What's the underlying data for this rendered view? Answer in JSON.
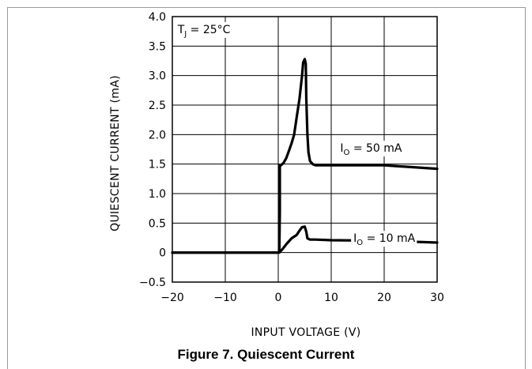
{
  "caption": "Figure 7. Quiescent Current",
  "chart_data": {
    "type": "line",
    "title": "",
    "xlabel": "INPUT VOLTAGE (V)",
    "ylabel": "QUIESCENT CURRENT (mA)",
    "xlim": [
      -20,
      30
    ],
    "ylim": [
      -0.5,
      4.0
    ],
    "xticks": [
      "−20",
      "−10",
      "0",
      "10",
      "20",
      "30"
    ],
    "yticks": [
      "4.0",
      "3.5",
      "3.0",
      "2.5",
      "2.0",
      "1.5",
      "1.0",
      "0.5",
      "0",
      "−0.5"
    ],
    "xtick_values": [
      -20,
      -10,
      0,
      10,
      20,
      30
    ],
    "ytick_values": [
      4.0,
      3.5,
      3.0,
      2.5,
      2.0,
      1.5,
      1.0,
      0.5,
      0,
      -0.5
    ],
    "grid": true,
    "annotations": [
      {
        "text": "T",
        "sub": "J",
        "rest": " = 25°C",
        "x": -19,
        "y": 3.72
      },
      {
        "text": "I",
        "sub": "O",
        "rest": " = 50 mA",
        "x": 11.7,
        "y": 1.71
      },
      {
        "text": "I",
        "sub": "O",
        "rest": " = 10 mA",
        "x": 14.2,
        "y": 0.18
      }
    ],
    "series": [
      {
        "label": "I_O = 50 mA",
        "x": [
          -20,
          -5,
          0.2,
          0.3,
          0.3,
          0.5,
          1,
          1.5,
          2,
          2.5,
          3,
          3.5,
          4,
          4.5,
          4.7,
          5,
          5.2,
          5.3,
          5.5,
          5.7,
          6,
          6.5,
          7,
          10,
          20,
          30
        ],
        "y": [
          0,
          0,
          0,
          0.7,
          1.48,
          1.48,
          1.52,
          1.6,
          1.72,
          1.85,
          2.0,
          2.3,
          2.6,
          3.0,
          3.22,
          3.28,
          3.2,
          2.6,
          2.0,
          1.7,
          1.55,
          1.5,
          1.48,
          1.48,
          1.48,
          1.42
        ]
      },
      {
        "label": "I_O = 10 mA",
        "x": [
          -20,
          0,
          0.5,
          1,
          1.5,
          2,
          2.5,
          3,
          3.5,
          4,
          4.5,
          5,
          5.3,
          5.5,
          6,
          7,
          10,
          20,
          30
        ],
        "y": [
          0,
          0,
          0.03,
          0.08,
          0.14,
          0.19,
          0.24,
          0.27,
          0.3,
          0.37,
          0.43,
          0.44,
          0.35,
          0.24,
          0.22,
          0.22,
          0.21,
          0.2,
          0.17
        ]
      }
    ]
  }
}
